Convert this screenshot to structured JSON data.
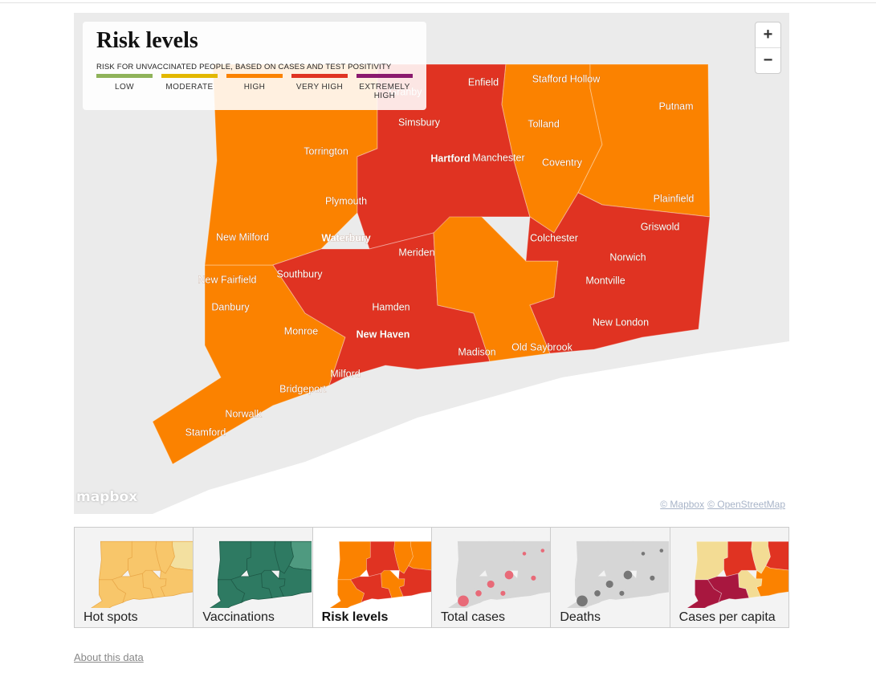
{
  "header": {
    "title": "Risk levels",
    "subtitle": "RISK FOR UNVACCINATED PEOPLE, BASED ON CASES AND TEST POSITIVITY"
  },
  "legend": [
    {
      "label": "LOW",
      "color": "#8fb35a"
    },
    {
      "label": "MODERATE",
      "color": "#e2b800"
    },
    {
      "label": "HIGH",
      "color": "#fb8200"
    },
    {
      "label": "VERY HIGH",
      "color": "#e03322"
    },
    {
      "label": "EXTREMELY HIGH",
      "color": "#8a1a6e"
    }
  ],
  "zoom": {
    "in": "+",
    "out": "−"
  },
  "towns": [
    "Granby",
    "Enfield",
    "Stafford Hollow",
    "Putnam",
    "Simsbury",
    "Tolland",
    "Torrington",
    "Hartford",
    "Manchester",
    "Coventry",
    "Plymouth",
    "Plainfield",
    "Griswold",
    "New Milford",
    "Waterbury",
    "Colchester",
    "Meriden",
    "Norwich",
    "Southbury",
    "New Fairfield",
    "Montville",
    "Danbury",
    "Hamden",
    "New London",
    "Monroe",
    "New Haven",
    "Old Saybrook",
    "Madison",
    "Milford",
    "Bridgeport",
    "Norwalk",
    "Stamford"
  ],
  "attribution": {
    "logo": "mapbox",
    "mapbox": "© Mapbox",
    "osm": "© OpenStreetMap"
  },
  "tabs": [
    "Hot spots",
    "Vaccinations",
    "Risk levels",
    "Total cases",
    "Deaths",
    "Cases per capita"
  ],
  "about": "About this data"
}
